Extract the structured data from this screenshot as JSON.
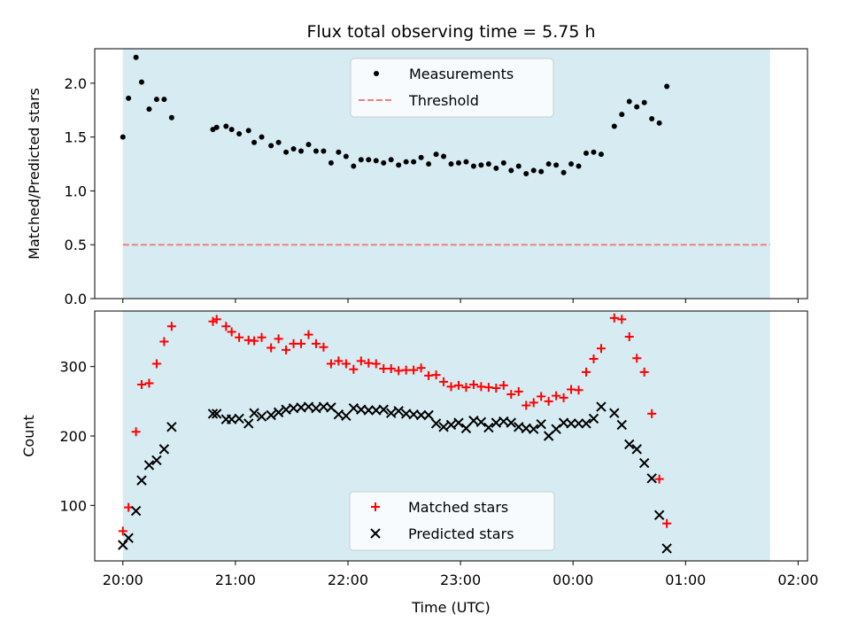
{
  "chart_data": [
    {
      "type": "scatter",
      "title": "Flux total observing time = 5.75 h",
      "xlabel": "",
      "ylabel": "Matched/Predicted stars",
      "xlim": [
        "19:45",
        "02:05"
      ],
      "ylim": [
        0,
        2.32
      ],
      "yticks": [
        0.0,
        0.5,
        1.0,
        1.5,
        2.0
      ],
      "ytick_labels": [
        "0.0",
        "0.5",
        "1.0",
        "1.5",
        "2.0"
      ],
      "shaded_region": {
        "from": "20:00",
        "to": "01:45",
        "color": "#add8e6"
      },
      "legend": {
        "position": "top-center",
        "entries": [
          "Measurements",
          "Threshold"
        ]
      },
      "series": [
        {
          "name": "Measurements",
          "color": "#000000",
          "marker": "dot",
          "points": [
            [
              "20:00",
              1.5
            ],
            [
              "20:03",
              1.86
            ],
            [
              "20:07",
              2.24
            ],
            [
              "20:10",
              2.01
            ],
            [
              "20:14",
              1.76
            ],
            [
              "20:18",
              1.85
            ],
            [
              "20:22",
              1.85
            ],
            [
              "20:26",
              1.68
            ],
            [
              "20:48",
              1.57
            ],
            [
              "20:50",
              1.59
            ],
            [
              "20:55",
              1.6
            ],
            [
              "20:58",
              1.57
            ],
            [
              "21:02",
              1.53
            ],
            [
              "21:07",
              1.56
            ],
            [
              "21:10",
              1.45
            ],
            [
              "21:14",
              1.5
            ],
            [
              "21:19",
              1.42
            ],
            [
              "21:23",
              1.45
            ],
            [
              "21:27",
              1.36
            ],
            [
              "21:31",
              1.39
            ],
            [
              "21:35",
              1.37
            ],
            [
              "21:39",
              1.43
            ],
            [
              "21:43",
              1.37
            ],
            [
              "21:47",
              1.37
            ],
            [
              "21:51",
              1.26
            ],
            [
              "21:55",
              1.36
            ],
            [
              "21:59",
              1.32
            ],
            [
              "22:03",
              1.23
            ],
            [
              "22:07",
              1.29
            ],
            [
              "22:11",
              1.29
            ],
            [
              "22:15",
              1.28
            ],
            [
              "22:19",
              1.26
            ],
            [
              "22:23",
              1.29
            ],
            [
              "22:27",
              1.24
            ],
            [
              "22:31",
              1.27
            ],
            [
              "22:35",
              1.27
            ],
            [
              "22:39",
              1.31
            ],
            [
              "22:43",
              1.25
            ],
            [
              "22:47",
              1.34
            ],
            [
              "22:51",
              1.32
            ],
            [
              "22:55",
              1.25
            ],
            [
              "22:59",
              1.26
            ],
            [
              "23:03",
              1.27
            ],
            [
              "23:07",
              1.23
            ],
            [
              "23:11",
              1.24
            ],
            [
              "23:15",
              1.25
            ],
            [
              "23:19",
              1.21
            ],
            [
              "23:23",
              1.26
            ],
            [
              "23:27",
              1.19
            ],
            [
              "23:31",
              1.23
            ],
            [
              "23:35",
              1.16
            ],
            [
              "23:39",
              1.19
            ],
            [
              "23:43",
              1.18
            ],
            [
              "23:47",
              1.25
            ],
            [
              "23:51",
              1.24
            ],
            [
              "23:55",
              1.17
            ],
            [
              "23:59",
              1.25
            ],
            [
              "00:03",
              1.23
            ],
            [
              "00:07",
              1.35
            ],
            [
              "00:11",
              1.36
            ],
            [
              "00:15",
              1.34
            ],
            [
              "00:22",
              1.6
            ],
            [
              "00:26",
              1.71
            ],
            [
              "00:30",
              1.83
            ],
            [
              "00:34",
              1.78
            ],
            [
              "00:38",
              1.82
            ],
            [
              "00:42",
              1.67
            ],
            [
              "00:46",
              1.63
            ],
            [
              "00:50",
              1.97
            ]
          ]
        },
        {
          "name": "Threshold",
          "color": "#f08080",
          "style": "dashed",
          "points": [
            [
              "20:00",
              0.5
            ],
            [
              "01:45",
              0.5
            ]
          ]
        }
      ]
    },
    {
      "type": "scatter",
      "title": "",
      "xlabel": "Time (UTC)",
      "ylabel": "Count",
      "xlim": [
        "19:45",
        "02:05"
      ],
      "ylim": [
        20,
        380
      ],
      "yticks": [
        100,
        200,
        300
      ],
      "ytick_labels": [
        "100",
        "200",
        "300"
      ],
      "xticks": [
        "20:00",
        "21:00",
        "22:00",
        "23:00",
        "00:00",
        "01:00",
        "02:00"
      ],
      "xtick_labels": [
        "20:00",
        "21:00",
        "22:00",
        "23:00",
        "00:00",
        "01:00",
        "02:00"
      ],
      "shaded_region": {
        "from": "20:00",
        "to": "01:45",
        "color": "#add8e6"
      },
      "legend": {
        "position": "bottom-center",
        "entries": [
          "Matched stars",
          "Predicted stars"
        ]
      },
      "series": [
        {
          "name": "Matched stars",
          "color": "#ff0000",
          "marker": "plus",
          "points": [
            [
              "20:00",
              63
            ],
            [
              "20:03",
              97
            ],
            [
              "20:07",
              206
            ],
            [
              "20:10",
              274
            ],
            [
              "20:14",
              276
            ],
            [
              "20:18",
              304
            ],
            [
              "20:22",
              336
            ],
            [
              "20:26",
              358
            ],
            [
              "20:48",
              365
            ],
            [
              "20:50",
              368
            ],
            [
              "20:55",
              358
            ],
            [
              "20:58",
              350
            ],
            [
              "21:02",
              342
            ],
            [
              "21:07",
              338
            ],
            [
              "21:10",
              337
            ],
            [
              "21:14",
              342
            ],
            [
              "21:19",
              327
            ],
            [
              "21:23",
              340
            ],
            [
              "21:27",
              324
            ],
            [
              "21:31",
              333
            ],
            [
              "21:35",
              333
            ],
            [
              "21:39",
              346
            ],
            [
              "21:43",
              333
            ],
            [
              "21:47",
              328
            ],
            [
              "21:51",
              304
            ],
            [
              "21:55",
              308
            ],
            [
              "21:59",
              304
            ],
            [
              "22:03",
              296
            ],
            [
              "22:07",
              308
            ],
            [
              "22:11",
              305
            ],
            [
              "22:15",
              304
            ],
            [
              "22:19",
              297
            ],
            [
              "22:23",
              297
            ],
            [
              "22:27",
              294
            ],
            [
              "22:31",
              295
            ],
            [
              "22:35",
              295
            ],
            [
              "22:39",
              298
            ],
            [
              "22:43",
              287
            ],
            [
              "22:47",
              288
            ],
            [
              "22:51",
              278
            ],
            [
              "22:55",
              271
            ],
            [
              "22:59",
              273
            ],
            [
              "23:03",
              270
            ],
            [
              "23:07",
              274
            ],
            [
              "23:11",
              271
            ],
            [
              "23:15",
              270
            ],
            [
              "23:19",
              269
            ],
            [
              "23:23",
              273
            ],
            [
              "23:27",
              260
            ],
            [
              "23:31",
              264
            ],
            [
              "23:35",
              244
            ],
            [
              "23:39",
              248
            ],
            [
              "23:43",
              257
            ],
            [
              "23:47",
              250
            ],
            [
              "23:51",
              258
            ],
            [
              "23:55",
              255
            ],
            [
              "23:59",
              267
            ],
            [
              "00:03",
              266
            ],
            [
              "00:07",
              292
            ],
            [
              "00:11",
              311
            ],
            [
              "00:15",
              326
            ],
            [
              "00:22",
              370
            ],
            [
              "00:26",
              368
            ],
            [
              "00:30",
              343
            ],
            [
              "00:34",
              312
            ],
            [
              "00:38",
              292
            ],
            [
              "00:42",
              232
            ],
            [
              "00:46",
              138
            ],
            [
              "00:50",
              74
            ]
          ]
        },
        {
          "name": "Predicted stars",
          "color": "#000000",
          "marker": "x",
          "points": [
            [
              "20:00",
              43
            ],
            [
              "20:03",
              53
            ],
            [
              "20:07",
              92
            ],
            [
              "20:10",
              136
            ],
            [
              "20:14",
              158
            ],
            [
              "20:18",
              165
            ],
            [
              "20:22",
              181
            ],
            [
              "20:26",
              213
            ],
            [
              "20:48",
              232
            ],
            [
              "20:50",
              232
            ],
            [
              "20:55",
              224
            ],
            [
              "20:58",
              224
            ],
            [
              "21:02",
              225
            ],
            [
              "21:07",
              218
            ],
            [
              "21:10",
              233
            ],
            [
              "21:14",
              228
            ],
            [
              "21:19",
              230
            ],
            [
              "21:23",
              234
            ],
            [
              "21:27",
              238
            ],
            [
              "21:31",
              240
            ],
            [
              "21:35",
              241
            ],
            [
              "21:39",
              242
            ],
            [
              "21:43",
              240
            ],
            [
              "21:47",
              242
            ],
            [
              "21:51",
              241
            ],
            [
              "21:55",
              231
            ],
            [
              "21:59",
              229
            ],
            [
              "22:03",
              240
            ],
            [
              "22:07",
              238
            ],
            [
              "22:11",
              237
            ],
            [
              "22:15",
              237
            ],
            [
              "22:19",
              238
            ],
            [
              "22:23",
              233
            ],
            [
              "22:27",
              236
            ],
            [
              "22:31",
              232
            ],
            [
              "22:35",
              231
            ],
            [
              "22:39",
              230
            ],
            [
              "22:43",
              230
            ],
            [
              "22:47",
              218
            ],
            [
              "22:51",
              213
            ],
            [
              "22:55",
              216
            ],
            [
              "22:59",
              219
            ],
            [
              "23:03",
              211
            ],
            [
              "23:07",
              222
            ],
            [
              "23:11",
              220
            ],
            [
              "23:15",
              212
            ],
            [
              "23:19",
              219
            ],
            [
              "23:23",
              221
            ],
            [
              "23:27",
              219
            ],
            [
              "23:31",
              213
            ],
            [
              "23:35",
              211
            ],
            [
              "23:39",
              210
            ],
            [
              "23:43",
              217
            ],
            [
              "23:47",
              200
            ],
            [
              "23:51",
              210
            ],
            [
              "23:55",
              219
            ],
            [
              "23:59",
              218
            ],
            [
              "00:03",
              218
            ],
            [
              "00:07",
              218
            ],
            [
              "00:11",
              225
            ],
            [
              "00:15",
              242
            ],
            [
              "00:22",
              233
            ],
            [
              "00:26",
              216
            ],
            [
              "00:30",
              188
            ],
            [
              "00:34",
              181
            ],
            [
              "00:38",
              161
            ],
            [
              "00:42",
              139
            ],
            [
              "00:46",
              86
            ],
            [
              "00:50",
              38
            ]
          ]
        }
      ]
    }
  ]
}
